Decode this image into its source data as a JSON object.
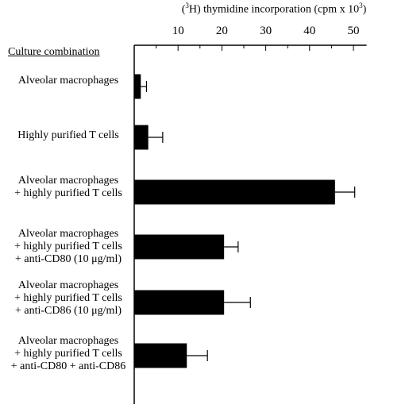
{
  "chart_data": {
    "type": "bar",
    "orientation": "horizontal",
    "xlabel": {
      "prefix": "(",
      "sup1": "3",
      "middle": "H) thymidine incorporation (cpm x 10",
      "sup2": "3",
      "suffix": ")"
    },
    "category_header": "Culture combination",
    "xlim": [
      0,
      53
    ],
    "xticks": [
      10,
      20,
      30,
      40,
      50
    ],
    "minor_ticks": [
      5,
      15,
      25,
      35,
      45
    ],
    "axis_position": "top",
    "grid": false,
    "bar_color": "#000000",
    "categories": [
      [
        "Alveolar macrophages"
      ],
      [
        "Highly purified  T cells"
      ],
      [
        "Alveolar macrophages",
        "+ highly purified  T cells"
      ],
      [
        "Alveolar macrophages",
        "+ highly purified  T cells",
        "+ anti-CD80 (10 μg/ml)"
      ],
      [
        "Alveolar macrophages",
        "+ highly purified  T cells",
        "+ anti-CD86 (10 μg/ml)"
      ],
      [
        "Alveolar macrophages",
        "+ highly purified  T cells",
        "+ anti-CD80 + anti-CD86"
      ]
    ],
    "values": [
      1.5,
      3.2,
      45.8,
      20.5,
      20.5,
      12.0
    ],
    "errors": [
      1.3,
      3.3,
      4.5,
      3.2,
      6.0,
      4.7
    ]
  }
}
